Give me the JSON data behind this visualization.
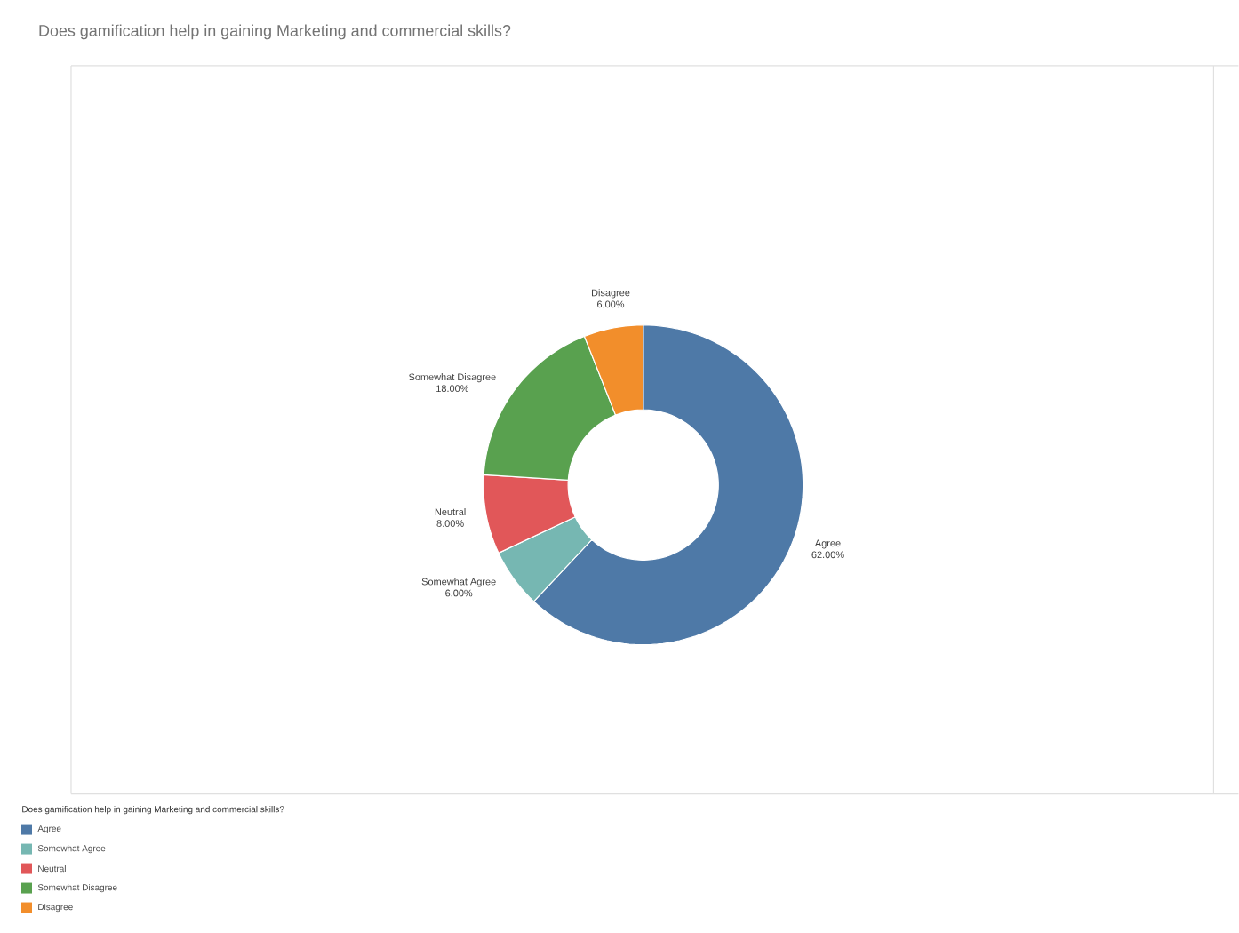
{
  "chart_data": {
    "type": "donut",
    "title": "Does gamification help in gaining Marketing and commercial skills?",
    "legend_title": "Does gamification help in gaining Marketing and commercial skills?",
    "categories": [
      "Agree",
      "Somewhat Agree",
      "Neutral",
      "Somewhat Disagree",
      "Disagree"
    ],
    "values": [
      62,
      6,
      8,
      18,
      6
    ],
    "value_labels": [
      "62.00%",
      "6.00%",
      "8.00%",
      "18.00%",
      "6.00%"
    ],
    "colors": [
      "#4e79a7",
      "#76b7b2",
      "#e15759",
      "#59a14f",
      "#f28e2b"
    ],
    "legend": "bottom left"
  }
}
